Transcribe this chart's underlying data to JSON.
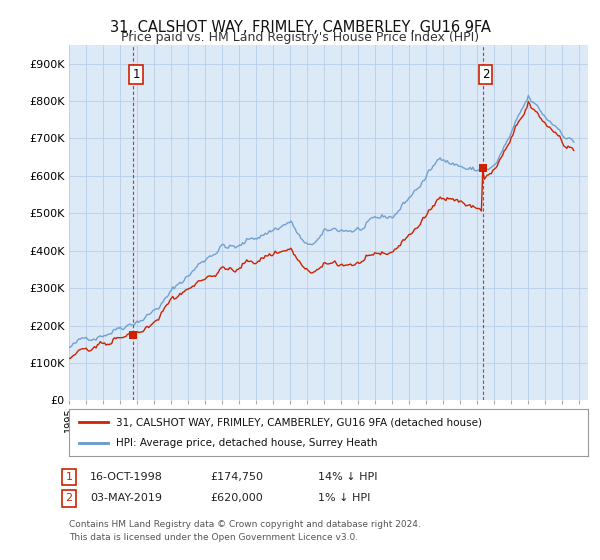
{
  "title": "31, CALSHOT WAY, FRIMLEY, CAMBERLEY, GU16 9FA",
  "subtitle": "Price paid vs. HM Land Registry's House Price Index (HPI)",
  "background_color": "#ffffff",
  "plot_background": "#dce9f7",
  "grid_color": "#b8cfe8",
  "hpi_color": "#6699cc",
  "price_color": "#cc2200",
  "vline_color": "#cc2200",
  "marker_color": "#cc2200",
  "ylim": [
    0,
    950000
  ],
  "yticks": [
    0,
    100000,
    200000,
    300000,
    400000,
    500000,
    600000,
    700000,
    800000,
    900000
  ],
  "ytick_labels": [
    "£0",
    "£100K",
    "£200K",
    "£300K",
    "£400K",
    "£500K",
    "£600K",
    "£700K",
    "£800K",
    "£900K"
  ],
  "purchase1_year": 1998.79,
  "purchase1_price": 174750,
  "purchase2_year": 2019.34,
  "purchase2_price": 620000,
  "legend_line1": "31, CALSHOT WAY, FRIMLEY, CAMBERLEY, GU16 9FA (detached house)",
  "legend_line2": "HPI: Average price, detached house, Surrey Heath"
}
